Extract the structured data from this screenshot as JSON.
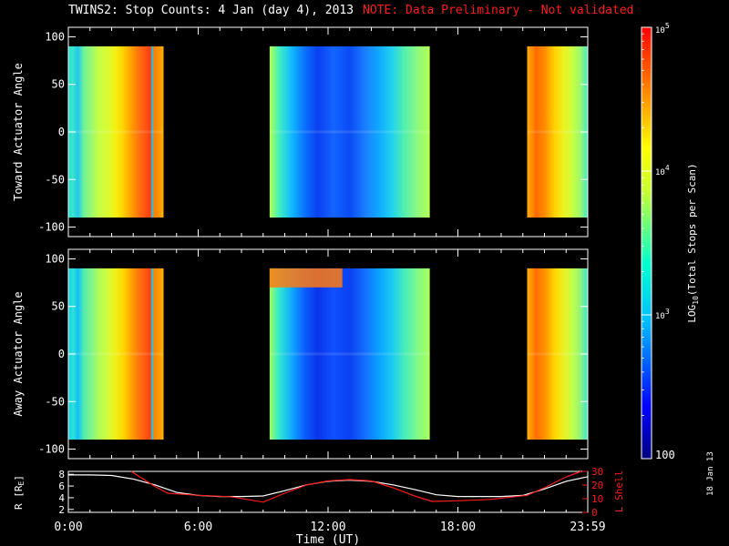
{
  "title": {
    "main": "TWINS2: Stop Counts:  4 Jan (day   4), 2013",
    "note": "NOTE: Data Preliminary - Not validated"
  },
  "stamp": "18 Jan 13",
  "colors": {
    "note": "#ff1a1a",
    "lshell": "#ff1a1a",
    "radius": "#ffffff",
    "nodata": "#000000"
  },
  "chart_data": [
    {
      "type": "heatmap",
      "ylabel": "Toward Actuator Angle",
      "yticks": [
        "100",
        "50",
        "0",
        "-50",
        "-100"
      ],
      "ylim": [
        -110,
        110
      ],
      "xlim": [
        0,
        24
      ],
      "data_range": [
        -90,
        90
      ],
      "intervals_hours": [
        [
          0,
          4.4
        ],
        [
          9.3,
          16.7
        ],
        [
          21.2,
          24
        ]
      ],
      "colorbar_range": [
        100,
        100000
      ]
    },
    {
      "type": "heatmap",
      "ylabel": "Away Actuator Angle",
      "yticks": [
        "100",
        "50",
        "0",
        "-50",
        "-100"
      ],
      "ylim": [
        -110,
        110
      ],
      "xlim": [
        0,
        24
      ],
      "data_range": [
        -90,
        90
      ],
      "intervals_hours": [
        [
          0,
          4.4
        ],
        [
          9.3,
          16.7
        ],
        [
          21.2,
          24
        ]
      ],
      "colorbar_range": [
        100,
        100000
      ]
    },
    {
      "type": "line",
      "xlabel": "Time (UT)",
      "xticks": [
        "0:00",
        "6:00",
        "12:00",
        "18:00",
        "23:59"
      ],
      "xtick_hours": [
        0,
        6,
        12,
        18,
        24
      ],
      "xlim": [
        0,
        24
      ],
      "ylabel_left": "R [R",
      "ylabel_left_sub": "E",
      "ylabel_left_end": "]",
      "yticks_left": [
        "8",
        "6",
        "4",
        "2"
      ],
      "ylim_left": [
        1.5,
        8.5
      ],
      "ylabel_right": "L Shell",
      "yticks_right": [
        "30",
        "20",
        "10",
        "0"
      ],
      "ylim_right": [
        0,
        30
      ],
      "series": [
        {
          "name": "R [RE]",
          "x": [
            0,
            1,
            2,
            3,
            4,
            5,
            6,
            7,
            8,
            9,
            10,
            11,
            12,
            13,
            14,
            15,
            16,
            17,
            18,
            19,
            20,
            21,
            22,
            23,
            24
          ],
          "y": [
            7.9,
            7.9,
            7.8,
            7.2,
            6.2,
            4.9,
            4.4,
            4.2,
            4.2,
            4.3,
            5.2,
            6.2,
            6.8,
            7.0,
            6.8,
            6.2,
            5.4,
            4.5,
            4.2,
            4.2,
            4.2,
            4.4,
            5.5,
            6.8,
            7.6
          ]
        },
        {
          "name": "L Shell",
          "x": [
            2.9,
            3.5,
            4.0,
            4.6,
            6,
            7.5,
            9.0,
            10,
            11,
            12,
            13,
            14,
            15,
            16,
            16.8,
            18,
            19.5,
            21.2,
            22,
            23,
            23.7
          ],
          "y": [
            30,
            24,
            19,
            14,
            12.5,
            11.5,
            7.5,
            14,
            20,
            23,
            24,
            23,
            18,
            12,
            8,
            8.5,
            9.5,
            12.5,
            18,
            26,
            32
          ]
        }
      ]
    }
  ],
  "colorbar": {
    "label_pre": "LOG",
    "label_sub": "10",
    "label_post": "(Total Stops per Scan)",
    "tick_top": "10",
    "tick_top_exp": "5",
    "tick_upper": "10",
    "tick_upper_exp": "4",
    "tick_lower": "10",
    "tick_lower_exp": "3",
    "tick_bottom": "100",
    "range": [
      100,
      100000
    ]
  }
}
